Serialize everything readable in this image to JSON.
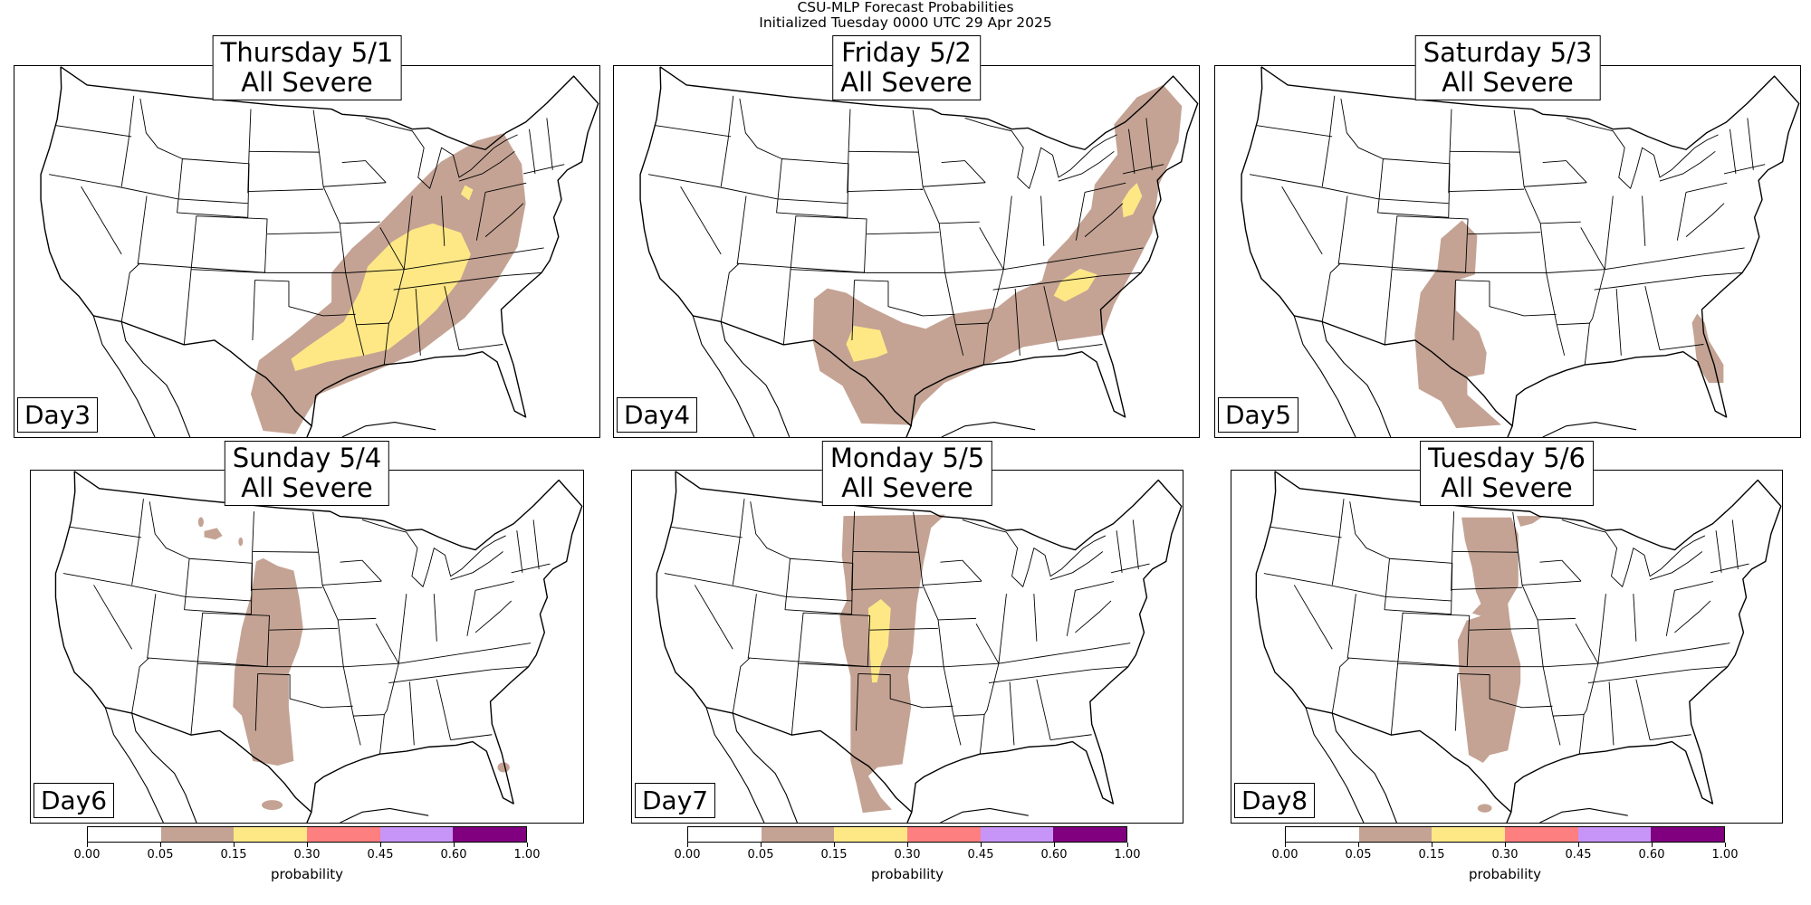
{
  "figure": {
    "title_line1": "CSU-MLP Forecast Probabilities",
    "title_line2": "Initialized Tuesday 0000 UTC 29 Apr 2025"
  },
  "panels": [
    {
      "date": "Thursday 5/1",
      "hazard": "All Severe",
      "day": "Day3"
    },
    {
      "date": "Friday 5/2",
      "hazard": "All Severe",
      "day": "Day4"
    },
    {
      "date": "Saturday 5/3",
      "hazard": "All Severe",
      "day": "Day5"
    },
    {
      "date": "Sunday 5/4",
      "hazard": "All Severe",
      "day": "Day6"
    },
    {
      "date": "Monday 5/5",
      "hazard": "All Severe",
      "day": "Day7"
    },
    {
      "date": "Tuesday 5/6",
      "hazard": "All Severe",
      "day": "Day8"
    }
  ],
  "colorbar": {
    "label": "probability",
    "ticks": [
      "0.00",
      "0.05",
      "0.15",
      "0.30",
      "0.45",
      "0.60",
      "1.00"
    ],
    "colors": [
      "#ffffff",
      "#c4a394",
      "#fee886",
      "#fe7f7f",
      "#c795f7",
      "#800080"
    ]
  },
  "legend_colors": {
    "prob_05_15": "#c4a394",
    "prob_15_30": "#fee886"
  }
}
